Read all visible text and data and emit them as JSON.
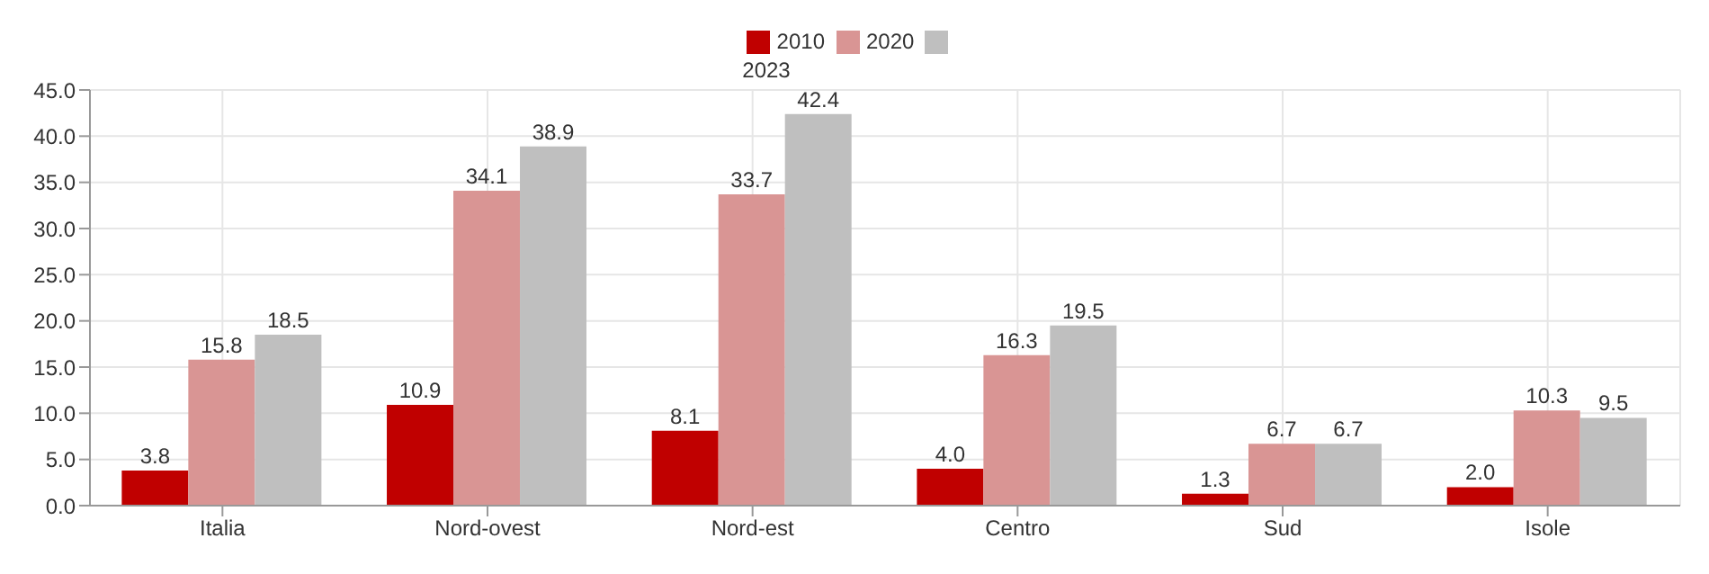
{
  "chart_data": {
    "type": "bar",
    "categories": [
      "Italia",
      "Nord-ovest",
      "Nord-est",
      "Centro",
      "Sud",
      "Isole"
    ],
    "series": [
      {
        "name": "2010",
        "color": "#c00000",
        "values": [
          3.8,
          10.9,
          8.1,
          4.0,
          1.3,
          2.0
        ],
        "value_labels": [
          "3.8",
          "10.9",
          "8.1",
          "4.0",
          "1.3",
          "2.0"
        ]
      },
      {
        "name": "2020",
        "color": "#d99594",
        "values": [
          15.8,
          34.1,
          33.7,
          16.3,
          6.7,
          10.3
        ],
        "value_labels": [
          "15.8",
          "34.1",
          "33.7",
          "16.3",
          "6.7",
          "10.3"
        ]
      },
      {
        "name": "2023",
        "color": "#bfbfbf",
        "values": [
          18.5,
          38.9,
          42.4,
          19.5,
          6.7,
          9.5
        ],
        "value_labels": [
          "18.5",
          "38.9",
          "42.4",
          "19.5",
          "6.7",
          "9.5"
        ]
      }
    ],
    "ylim": [
      0,
      45
    ],
    "yticks": [
      {
        "value": 0,
        "label": "0.0"
      },
      {
        "value": 5,
        "label": "5.0"
      },
      {
        "value": 10,
        "label": "10.0"
      },
      {
        "value": 15,
        "label": "15.0"
      },
      {
        "value": 20,
        "label": "20.0"
      },
      {
        "value": 25,
        "label": "25.0"
      },
      {
        "value": 30,
        "label": "30.0"
      },
      {
        "value": 35,
        "label": "35.0"
      },
      {
        "value": 40,
        "label": "40.0"
      },
      {
        "value": 45,
        "label": "45.0"
      }
    ],
    "grid": true,
    "legend": "top"
  }
}
